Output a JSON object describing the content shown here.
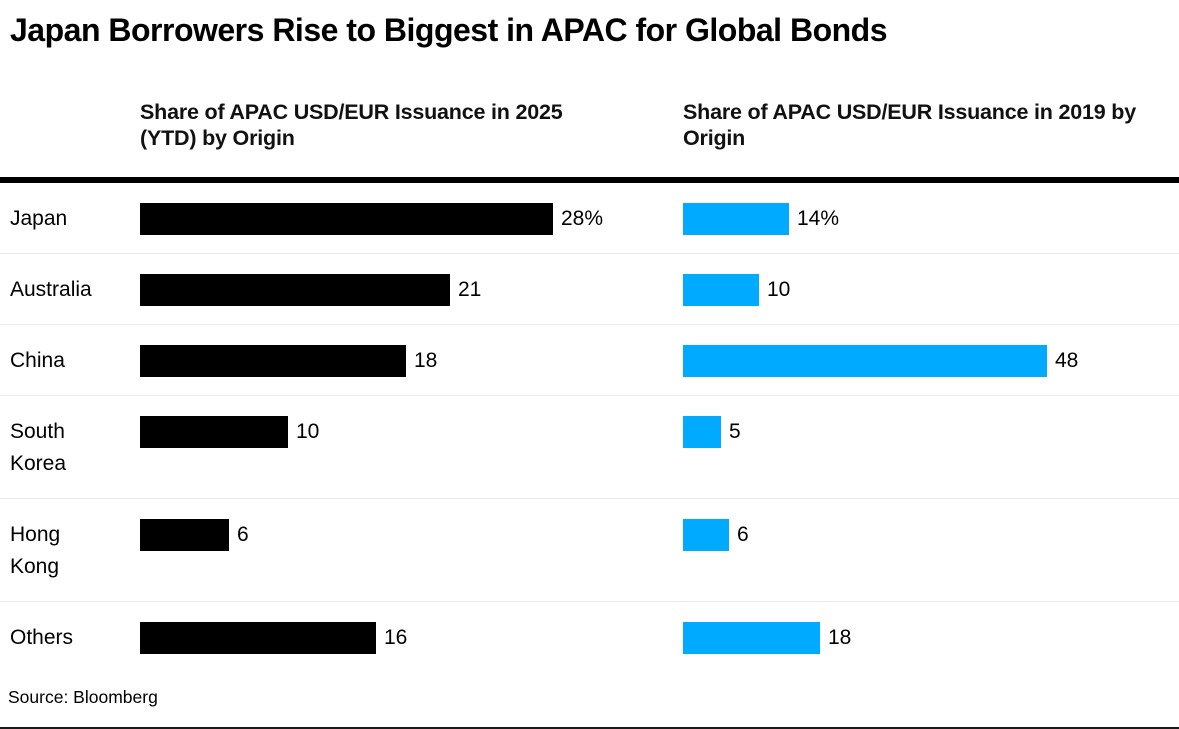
{
  "title": "Japan Borrowers Rise to Biggest in APAC for Global Bonds",
  "source": "Source: Bloomberg",
  "colors": {
    "bar_2025": "#000000",
    "bar_2019": "#00AAFF",
    "top_rule": "#000000",
    "row_separator": "#EDEDED"
  },
  "chart_data": [
    {
      "type": "bar",
      "orientation": "horizontal",
      "title": "Share of APAC USD/EUR Issuance in 2025 (YTD) by Origin",
      "categories": [
        "Japan",
        "Australia",
        "China",
        "South Korea",
        "Hong Kong",
        "Others"
      ],
      "values": [
        28,
        21,
        18,
        10,
        6,
        16
      ],
      "value_labels": [
        "28%",
        "21",
        "18",
        "10",
        "6",
        "16"
      ],
      "unit": "percent",
      "bar_color": "#000000",
      "xlim": [
        0,
        28
      ],
      "grid": false,
      "legend": false
    },
    {
      "type": "bar",
      "orientation": "horizontal",
      "title": "Share of APAC USD/EUR Issuance in 2019 by Origin",
      "categories": [
        "Japan",
        "Australia",
        "China",
        "South Korea",
        "Hong Kong",
        "Others"
      ],
      "values": [
        14,
        10,
        48,
        5,
        6,
        18
      ],
      "value_labels": [
        "14%",
        "10",
        "48",
        "5",
        "6",
        "18"
      ],
      "unit": "percent",
      "bar_color": "#00AAFF",
      "xlim": [
        0,
        48
      ],
      "grid": false,
      "legend": false
    }
  ]
}
